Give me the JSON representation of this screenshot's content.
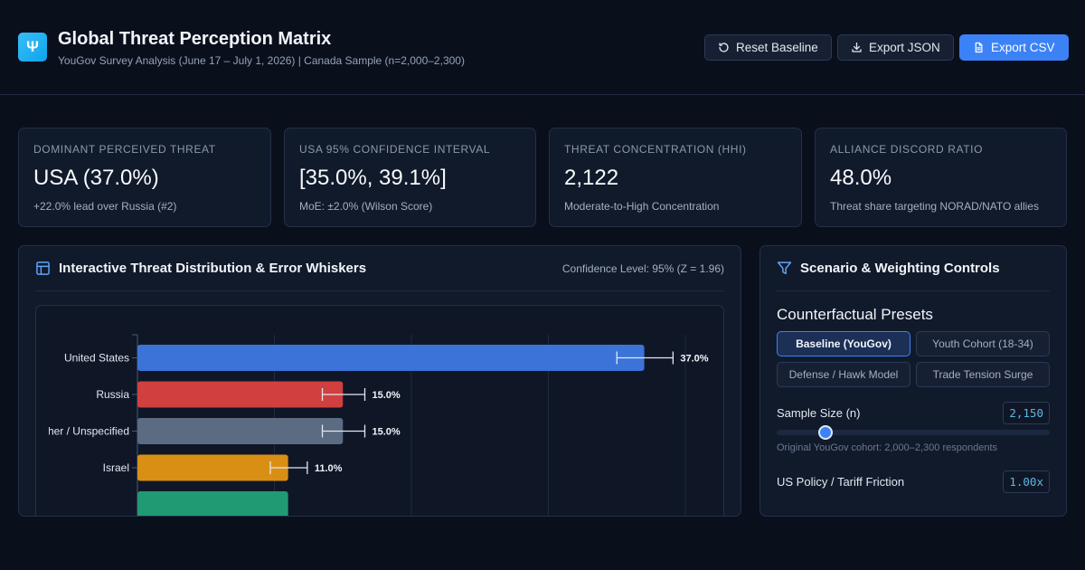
{
  "header": {
    "logo": "Ψ",
    "title": "Global Threat Perception Matrix",
    "subtitle": "YouGov Survey Analysis (June 17 – July 1, 2026) | Canada Sample (n=2,000–2,300)",
    "buttons": {
      "reset": "Reset Baseline",
      "export_json": "Export JSON",
      "export_csv": "Export CSV"
    }
  },
  "kpis": [
    {
      "label": "Dominant Perceived Threat",
      "value": "USA (37.0%)",
      "note": "+22.0% lead over Russia (#2)"
    },
    {
      "label": "USA 95% Confidence Interval",
      "value": "[35.0%, 39.1%]",
      "note": "MoE: ±2.0% (Wilson Score)"
    },
    {
      "label": "Threat Concentration (HHI)",
      "value": "2,122",
      "note": "Moderate-to-High Concentration"
    },
    {
      "label": "Alliance Discord Ratio",
      "value": "48.0%",
      "note": "Threat share targeting NORAD/NATO allies"
    }
  ],
  "chart_panel": {
    "title": "Interactive Threat Distribution & Error Whiskers",
    "meta": "Confidence Level: 95% (Z = 1.96)"
  },
  "chart_data": {
    "type": "bar",
    "orientation": "horizontal",
    "categories": [
      "United States",
      "Russia",
      "Other / Unspecified",
      "Israel",
      ""
    ],
    "values": [
      37.0,
      15.0,
      15.0,
      11.0,
      11.0
    ],
    "ci_low": [
      35.0,
      13.5,
      13.5,
      9.7,
      null
    ],
    "ci_high": [
      39.1,
      16.6,
      16.6,
      12.4,
      null
    ],
    "value_labels": [
      "37.0%",
      "15.0%",
      "15.0%",
      "11.0%",
      ""
    ],
    "colors": [
      "#3b73d9",
      "#d13f3f",
      "#5b6b82",
      "#d98f14",
      "#1f9a73"
    ],
    "xlim": [
      0,
      40
    ],
    "grid": true
  },
  "controls_panel": {
    "title": "Scenario & Weighting Controls",
    "presets_title": "Counterfactual Presets",
    "presets": [
      {
        "label": "Baseline (YouGov)",
        "active": true
      },
      {
        "label": "Youth Cohort (18-34)",
        "active": false
      },
      {
        "label": "Defense / Hawk Model",
        "active": false
      },
      {
        "label": "Trade Tension Surge",
        "active": false
      }
    ],
    "sample_size": {
      "label": "Sample Size (n)",
      "value": "2,150",
      "slider_level": 0.18,
      "hint": "Original YouGov cohort: 2,000–2,300 respondents"
    },
    "tariff": {
      "label": "US Policy / Tariff Friction",
      "value": "1.00x"
    }
  }
}
